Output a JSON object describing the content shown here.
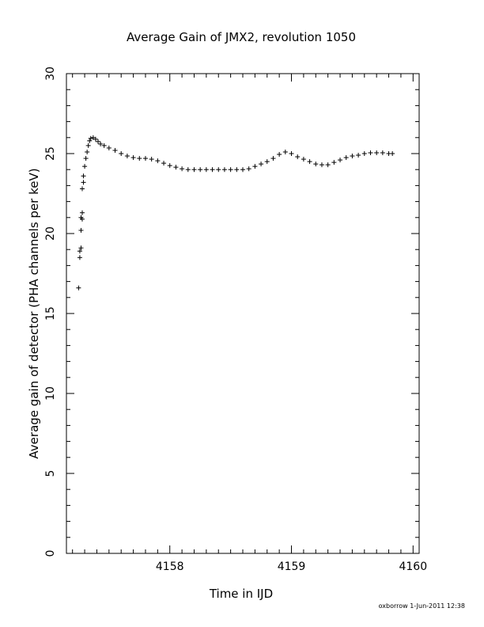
{
  "chart_data": {
    "type": "scatter",
    "title": "Average Gain of JMX2, revolution 1050",
    "xlabel": "Time in IJD",
    "ylabel": "Average gain of detector (PHA channels per keV)",
    "xlim": [
      4157.15,
      4160.05
    ],
    "ylim": [
      0,
      30
    ],
    "x_ticks": [
      4158,
      4159,
      4160
    ],
    "y_ticks": [
      0,
      5,
      10,
      15,
      20,
      25,
      30
    ],
    "marker": "plus",
    "grid": false,
    "series": [
      {
        "x": [
          4157.25,
          4157.26,
          4157.26,
          4157.27,
          4157.27,
          4157.27,
          4157.28,
          4157.28,
          4157.28,
          4157.29,
          4157.29,
          4157.3,
          4157.31,
          4157.32,
          4157.33,
          4157.34,
          4157.35,
          4157.37,
          4157.39,
          4157.41,
          4157.43,
          4157.46,
          4157.5,
          4157.55,
          4157.6,
          4157.65,
          4157.7,
          4157.75,
          4157.8,
          4157.85,
          4157.9,
          4157.95,
          4158.0,
          4158.05,
          4158.1,
          4158.15,
          4158.2,
          4158.25,
          4158.3,
          4158.35,
          4158.4,
          4158.45,
          4158.5,
          4158.55,
          4158.6,
          4158.65,
          4158.7,
          4158.75,
          4158.8,
          4158.85,
          4158.9,
          4158.95,
          4159.0,
          4159.05,
          4159.1,
          4159.15,
          4159.2,
          4159.25,
          4159.3,
          4159.35,
          4159.4,
          4159.45,
          4159.5,
          4159.55,
          4159.6,
          4159.65,
          4159.7,
          4159.75,
          4159.8,
          4159.83
        ],
        "y": [
          16.6,
          18.5,
          18.9,
          19.1,
          20.2,
          21.0,
          20.9,
          21.3,
          22.8,
          23.2,
          23.6,
          24.2,
          24.7,
          25.1,
          25.5,
          25.8,
          25.95,
          26.0,
          25.9,
          25.75,
          25.6,
          25.5,
          25.35,
          25.2,
          25.0,
          24.85,
          24.75,
          24.7,
          24.7,
          24.65,
          24.55,
          24.4,
          24.25,
          24.15,
          24.05,
          24.0,
          24.0,
          24.0,
          24.0,
          24.0,
          24.0,
          24.0,
          24.0,
          24.0,
          24.0,
          24.05,
          24.2,
          24.35,
          24.5,
          24.7,
          24.95,
          25.1,
          25.0,
          24.8,
          24.65,
          24.5,
          24.35,
          24.3,
          24.3,
          24.45,
          24.6,
          24.75,
          24.85,
          24.9,
          25.0,
          25.05,
          25.05,
          25.05,
          25.0,
          25.0
        ]
      }
    ]
  },
  "footer": {
    "stamp": "oxborrow   1-Jun-2011  12:38"
  }
}
